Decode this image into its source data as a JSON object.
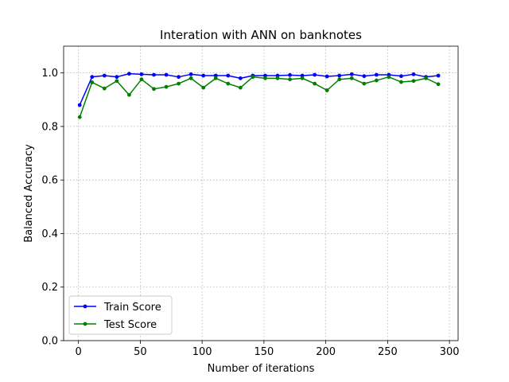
{
  "chart_data": {
    "type": "line",
    "title": "Interation with ANN on banknotes",
    "xlabel": "Number of iterations",
    "ylabel": "Balanced Accuracy",
    "xlim": [
      -12,
      307
    ],
    "ylim": [
      0,
      1.1
    ],
    "xticks": [
      0,
      50,
      100,
      150,
      200,
      250,
      300
    ],
    "yticks": [
      0.0,
      0.2,
      0.4,
      0.6,
      0.8,
      1.0
    ],
    "xtick_labels": [
      "0",
      "50",
      "100",
      "150",
      "200",
      "250",
      "300"
    ],
    "ytick_labels": [
      "0.0",
      "0.2",
      "0.4",
      "0.6",
      "0.8",
      "1.0"
    ],
    "grid": true,
    "legend_position": "lower-left",
    "x": [
      1,
      11,
      21,
      31,
      41,
      51,
      61,
      71,
      81,
      91,
      101,
      111,
      121,
      131,
      141,
      151,
      161,
      171,
      181,
      191,
      201,
      211,
      221,
      231,
      241,
      251,
      261,
      271,
      281,
      291
    ],
    "series": [
      {
        "name": "Train Score",
        "color": "#0000ff",
        "values": [
          0.88,
          0.985,
          0.99,
          0.985,
          0.997,
          0.995,
          0.993,
          0.993,
          0.985,
          0.995,
          0.99,
          0.99,
          0.99,
          0.98,
          0.99,
          0.99,
          0.99,
          0.992,
          0.99,
          0.993,
          0.987,
          0.99,
          0.995,
          0.988,
          0.993,
          0.993,
          0.988,
          0.995,
          0.985,
          0.99
        ]
      },
      {
        "name": "Test Score",
        "color": "#008000",
        "values": [
          0.835,
          0.965,
          0.942,
          0.97,
          0.918,
          0.976,
          0.94,
          0.948,
          0.96,
          0.98,
          0.945,
          0.98,
          0.96,
          0.945,
          0.985,
          0.98,
          0.98,
          0.976,
          0.98,
          0.96,
          0.935,
          0.976,
          0.98,
          0.96,
          0.972,
          0.985,
          0.966,
          0.97,
          0.98,
          0.958
        ]
      }
    ]
  }
}
